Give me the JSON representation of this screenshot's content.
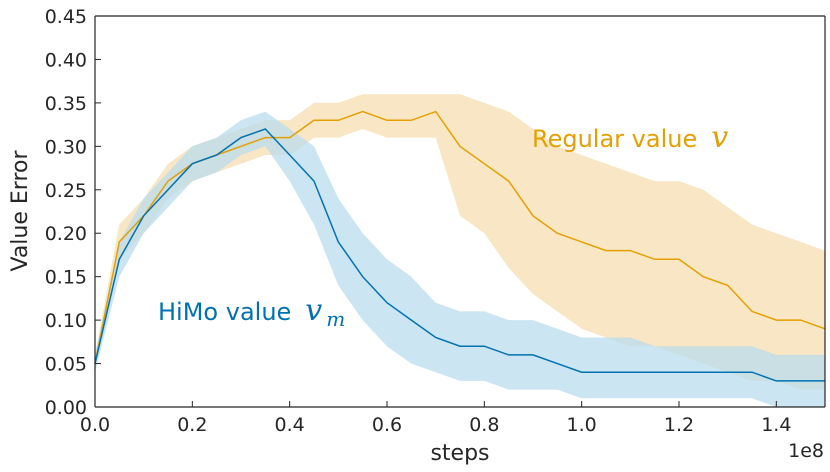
{
  "chart_data": {
    "type": "line",
    "title": "",
    "xlabel": "steps",
    "ylabel": "Value Error",
    "x_offset_label": "1e8",
    "xlim": [
      0.0,
      1.5
    ],
    "ylim": [
      0.0,
      0.45
    ],
    "x_ticks": [
      "0.0",
      "0.2",
      "0.4",
      "0.6",
      "0.8",
      "1.0",
      "1.2",
      "1.4"
    ],
    "y_ticks": [
      "0.00",
      "0.05",
      "0.10",
      "0.15",
      "0.20",
      "0.25",
      "0.30",
      "0.35",
      "0.40",
      "0.45"
    ],
    "grid": false,
    "legend": "inline labels",
    "x": [
      0.0,
      0.05,
      0.1,
      0.15,
      0.2,
      0.25,
      0.3,
      0.35,
      0.4,
      0.45,
      0.5,
      0.55,
      0.6,
      0.65,
      0.7,
      0.75,
      0.8,
      0.85,
      0.9,
      0.95,
      1.0,
      1.05,
      1.1,
      1.15,
      1.2,
      1.25,
      1.3,
      1.35,
      1.4,
      1.45,
      1.5
    ],
    "series": [
      {
        "name": "Regular value",
        "symbol": "v",
        "subscript": "",
        "color": "#E69F00",
        "band_color": "#F6DDB0",
        "values": [
          0.05,
          0.19,
          0.22,
          0.26,
          0.28,
          0.29,
          0.3,
          0.31,
          0.31,
          0.33,
          0.33,
          0.34,
          0.33,
          0.33,
          0.34,
          0.3,
          0.28,
          0.26,
          0.22,
          0.2,
          0.19,
          0.18,
          0.18,
          0.17,
          0.17,
          0.15,
          0.14,
          0.11,
          0.1,
          0.1,
          0.09
        ],
        "band_low": [
          0.04,
          0.17,
          0.2,
          0.24,
          0.26,
          0.27,
          0.28,
          0.29,
          0.29,
          0.31,
          0.31,
          0.32,
          0.31,
          0.31,
          0.31,
          0.22,
          0.2,
          0.16,
          0.13,
          0.11,
          0.09,
          0.08,
          0.07,
          0.07,
          0.06,
          0.05,
          0.04,
          0.03,
          0.03,
          0.02,
          0.02
        ],
        "band_high": [
          0.06,
          0.21,
          0.24,
          0.28,
          0.3,
          0.31,
          0.32,
          0.33,
          0.33,
          0.35,
          0.35,
          0.36,
          0.36,
          0.36,
          0.36,
          0.36,
          0.35,
          0.34,
          0.32,
          0.3,
          0.29,
          0.28,
          0.27,
          0.26,
          0.26,
          0.25,
          0.23,
          0.21,
          0.2,
          0.19,
          0.18
        ]
      },
      {
        "name": "HiMo value",
        "symbol": "v",
        "subscript": "m",
        "color": "#0072B2",
        "band_color": "#B9DCEE",
        "values": [
          0.05,
          0.17,
          0.22,
          0.25,
          0.28,
          0.29,
          0.31,
          0.32,
          0.29,
          0.26,
          0.19,
          0.15,
          0.12,
          0.1,
          0.08,
          0.07,
          0.07,
          0.06,
          0.06,
          0.05,
          0.04,
          0.04,
          0.04,
          0.04,
          0.04,
          0.04,
          0.04,
          0.04,
          0.03,
          0.03,
          0.03
        ],
        "band_low": [
          0.04,
          0.15,
          0.2,
          0.23,
          0.26,
          0.27,
          0.29,
          0.3,
          0.26,
          0.21,
          0.14,
          0.1,
          0.07,
          0.05,
          0.04,
          0.03,
          0.03,
          0.02,
          0.02,
          0.02,
          0.01,
          0.01,
          0.01,
          0.01,
          0.01,
          0.01,
          0.01,
          0.01,
          0.0,
          0.0,
          0.0
        ],
        "band_high": [
          0.06,
          0.19,
          0.24,
          0.27,
          0.3,
          0.31,
          0.33,
          0.34,
          0.32,
          0.3,
          0.24,
          0.2,
          0.17,
          0.15,
          0.12,
          0.11,
          0.11,
          0.1,
          0.1,
          0.09,
          0.08,
          0.08,
          0.08,
          0.07,
          0.07,
          0.07,
          0.07,
          0.07,
          0.06,
          0.06,
          0.06
        ]
      }
    ]
  }
}
